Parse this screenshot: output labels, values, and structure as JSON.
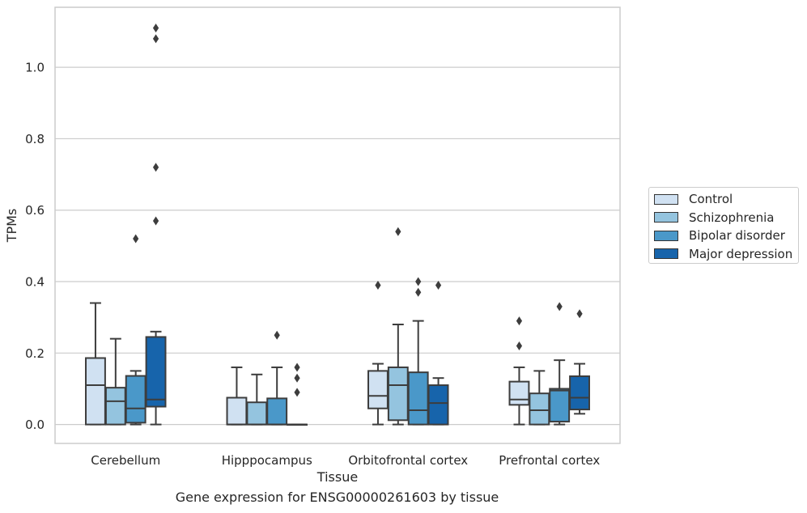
{
  "chart_data": {
    "type": "box",
    "xlabel": "Tissue",
    "ylabel": "TPMs",
    "ylim": [
      -0.053,
      1.168
    ],
    "yticks": [
      0.0,
      0.2,
      0.4,
      0.6,
      0.8,
      1.0
    ],
    "ytick_labels": [
      "0.0",
      "0.2",
      "0.4",
      "0.6",
      "0.8",
      "1.0"
    ],
    "grid": true,
    "legend_position": "right, outside",
    "categories": [
      "Cerebellum",
      "Hipppocampus",
      "Orbitofrontal cortex",
      "Prefrontal cortex"
    ],
    "series": [
      {
        "name": "Control",
        "color": "#d0e1f2",
        "boxes": [
          {
            "min": 0.0,
            "q1": 0.0,
            "median": 0.11,
            "q3": 0.186,
            "max": 0.34,
            "outliers": []
          },
          {
            "min": 0.0,
            "q1": 0.0,
            "median": 0.0,
            "q3": 0.075,
            "max": 0.16,
            "outliers": []
          },
          {
            "min": 0.0,
            "q1": 0.045,
            "median": 0.08,
            "q3": 0.15,
            "max": 0.17,
            "outliers": [
              0.39
            ]
          },
          {
            "min": 0.0,
            "q1": 0.055,
            "median": 0.07,
            "q3": 0.12,
            "max": 0.16,
            "outliers": [
              0.22,
              0.29
            ]
          }
        ]
      },
      {
        "name": "Schizophrenia",
        "color": "#94c4df",
        "boxes": [
          {
            "min": 0.0,
            "q1": 0.0,
            "median": 0.065,
            "q3": 0.103,
            "max": 0.24,
            "outliers": []
          },
          {
            "min": 0.0,
            "q1": 0.0,
            "median": 0.0,
            "q3": 0.062,
            "max": 0.14,
            "outliers": []
          },
          {
            "min": 0.0,
            "q1": 0.012,
            "median": 0.11,
            "q3": 0.16,
            "max": 0.28,
            "outliers": [
              0.54
            ]
          },
          {
            "min": 0.0,
            "q1": 0.0,
            "median": 0.04,
            "q3": 0.087,
            "max": 0.15,
            "outliers": []
          }
        ]
      },
      {
        "name": "Bipolar disorder",
        "color": "#4a98c9",
        "boxes": [
          {
            "min": 0.0,
            "q1": 0.005,
            "median": 0.045,
            "q3": 0.136,
            "max": 0.15,
            "outliers": [
              0.52
            ]
          },
          {
            "min": 0.0,
            "q1": 0.0,
            "median": 0.0,
            "q3": 0.073,
            "max": 0.16,
            "outliers": [
              0.25
            ]
          },
          {
            "min": 0.0,
            "q1": 0.0,
            "median": 0.04,
            "q3": 0.146,
            "max": 0.29,
            "outliers": [
              0.37,
              0.4
            ]
          },
          {
            "min": 0.0,
            "q1": 0.008,
            "median": 0.095,
            "q3": 0.1,
            "max": 0.18,
            "outliers": [
              0.33
            ]
          }
        ]
      },
      {
        "name": "Major depression",
        "color": "#1764ab",
        "boxes": [
          {
            "min": 0.0,
            "q1": 0.05,
            "median": 0.07,
            "q3": 0.245,
            "max": 0.26,
            "outliers": [
              0.57,
              0.72,
              1.08,
              1.11
            ]
          },
          {
            "min": 0.0,
            "q1": 0.0,
            "median": 0.0,
            "q3": 0.0,
            "max": 0.0,
            "outliers": [
              0.09,
              0.13,
              0.16
            ]
          },
          {
            "min": 0.0,
            "q1": 0.0,
            "median": 0.06,
            "q3": 0.11,
            "max": 0.13,
            "outliers": [
              0.39
            ]
          },
          {
            "min": 0.03,
            "q1": 0.042,
            "median": 0.075,
            "q3": 0.135,
            "max": 0.17,
            "outliers": [
              0.31
            ]
          }
        ]
      }
    ]
  },
  "caption": "Gene expression for ENSG00000261603 by tissue"
}
